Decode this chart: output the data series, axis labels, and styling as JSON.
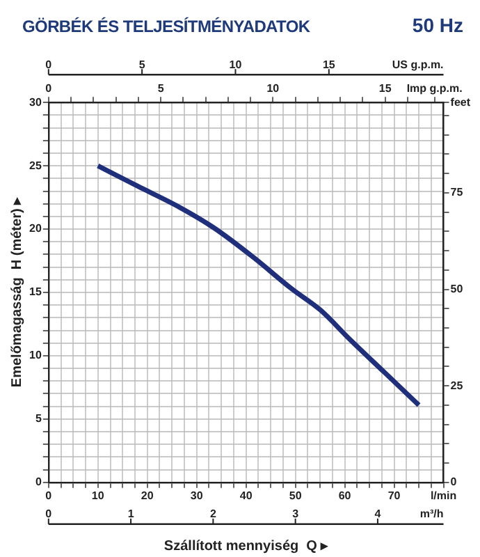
{
  "chart_data": {
    "type": "line",
    "title": "GÖRBÉK ÉS TELJESÍTMÉNYADATOK",
    "subtitle": "50 Hz",
    "xlabel": "Szállított mennyiség  Q ▸",
    "ylabel": "Emelőmagasság  H (méter) ▸",
    "x": [
      10,
      18,
      25.7,
      33.5,
      41.4,
      49.2,
      55.1,
      61,
      68,
      75
    ],
    "series": [
      {
        "color": "#1f2f7c",
        "values": [
          25,
          23.4,
          21.9,
          20.1,
          17.8,
          15.3,
          13.6,
          11.3,
          8.7,
          6.1
        ]
      }
    ],
    "xlim": [
      0,
      80
    ],
    "xticks": [
      0,
      {
        "value": 2.5,
        "label": null
      },
      {
        "value": 5,
        "label": null
      },
      {
        "value": 7.5,
        "label": null
      },
      10,
      {
        "value": 12.5,
        "label": null
      },
      {
        "value": 15,
        "label": null
      },
      {
        "value": 17.5,
        "label": null
      },
      20,
      {
        "value": 22.5,
        "label": null
      },
      {
        "value": 25,
        "label": null
      },
      {
        "value": 27.5,
        "label": null
      },
      30,
      {
        "value": 32.5,
        "label": null
      },
      {
        "value": 35,
        "label": null
      },
      {
        "value": 37.5,
        "label": null
      },
      40,
      {
        "value": 42.5,
        "label": null
      },
      {
        "value": 45,
        "label": null
      },
      {
        "value": 47.5,
        "label": null
      },
      50,
      {
        "value": 52.5,
        "label": null
      },
      {
        "value": 55,
        "label": null
      },
      {
        "value": 57.5,
        "label": null
      },
      60,
      {
        "value": 62.5,
        "label": null
      },
      {
        "value": 65,
        "label": null
      },
      {
        "value": 67.5,
        "label": null
      },
      70,
      {
        "value": 72.5,
        "label": null
      },
      {
        "value": 75,
        "label": null
      },
      {
        "value": 77.5,
        "label": null
      },
      {
        "value": 80,
        "label": "l/min"
      }
    ],
    "ylim": [
      0,
      30
    ],
    "yticks": [
      0,
      {
        "value": 1,
        "label": null
      },
      {
        "value": 2,
        "label": null
      },
      {
        "value": 3,
        "label": null
      },
      {
        "value": 4,
        "label": null
      },
      5,
      {
        "value": 6,
        "label": null
      },
      {
        "value": 7,
        "label": null
      },
      {
        "value": 8,
        "label": null
      },
      {
        "value": 9,
        "label": null
      },
      10,
      {
        "value": 11,
        "label": null
      },
      {
        "value": 12,
        "label": null
      },
      {
        "value": 13,
        "label": null
      },
      {
        "value": 14,
        "label": null
      },
      15,
      {
        "value": 16,
        "label": null
      },
      {
        "value": 17,
        "label": null
      },
      {
        "value": 18,
        "label": null
      },
      {
        "value": 19,
        "label": null
      },
      20,
      {
        "value": 21,
        "label": null
      },
      {
        "value": 22,
        "label": null
      },
      {
        "value": 23,
        "label": null
      },
      {
        "value": 24,
        "label": null
      },
      25,
      {
        "value": 26,
        "label": null
      },
      {
        "value": 27,
        "label": null
      },
      {
        "value": 28,
        "label": null
      },
      {
        "value": 29,
        "label": null
      },
      30
    ],
    "y2lim": [
      0,
      98.4
    ],
    "y2ticks": [
      0,
      {
        "value": 5,
        "label": null
      },
      {
        "value": 10,
        "label": null
      },
      {
        "value": 15,
        "label": null
      },
      {
        "value": 20,
        "label": null
      },
      25,
      {
        "value": 30,
        "label": null
      },
      {
        "value": 35,
        "label": null
      },
      {
        "value": 40,
        "label": null
      },
      {
        "value": 45,
        "label": null
      },
      50,
      {
        "value": 55,
        "label": null
      },
      {
        "value": 60,
        "label": null
      },
      {
        "value": 65,
        "label": null
      },
      {
        "value": 70,
        "label": null
      },
      75,
      {
        "value": 80,
        "label": null
      },
      {
        "value": 85,
        "label": null
      },
      {
        "value": 90,
        "label": null
      },
      {
        "value": 95,
        "label": null
      },
      {
        "value": 98.4,
        "label": "feet"
      }
    ],
    "x2lim": [
      0,
      17.6
    ],
    "x2ticks": [
      0,
      {
        "value": 1,
        "label": null
      },
      {
        "value": 2,
        "label": null
      },
      {
        "value": 3,
        "label": null
      },
      {
        "value": 4,
        "label": null
      },
      5,
      {
        "value": 6,
        "label": null
      },
      {
        "value": 7,
        "label": null
      },
      {
        "value": 8,
        "label": null
      },
      {
        "value": 9,
        "label": null
      },
      10,
      {
        "value": 11,
        "label": null
      },
      {
        "value": 12,
        "label": null
      },
      {
        "value": 13,
        "label": null
      },
      {
        "value": 14,
        "label": null
      },
      15,
      {
        "value": 16,
        "label": null
      },
      {
        "value": 17.2,
        "label": "Imp g.p.m."
      }
    ],
    "annotations": [
      "0",
      "5",
      "10",
      "15",
      "US g.p.m.",
      "0",
      "1",
      "2",
      "3",
      "4",
      "m³/h"
    ],
    "grid": true,
    "legend": false,
    "marker": "none",
    "line_style": "solid"
  }
}
